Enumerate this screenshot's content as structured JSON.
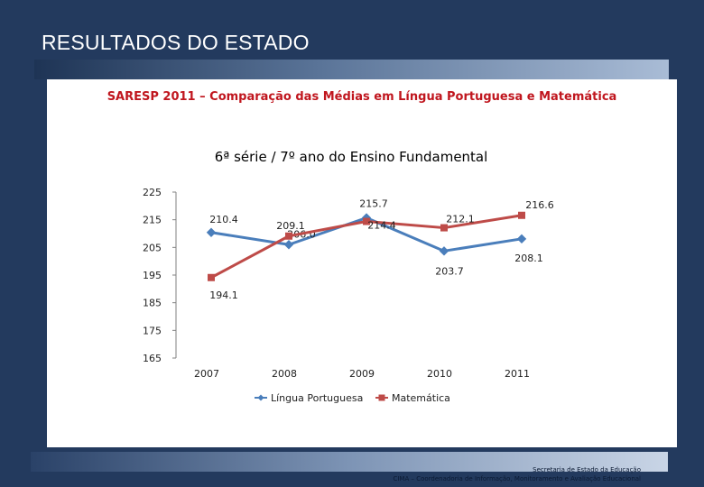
{
  "slide": {
    "title": "RESULTADOS DO ESTADO",
    "subtitle": "SARESP 2011 – Comparação das Médias em Língua Portuguesa e Matemática"
  },
  "footer": {
    "line1": "Secretaria de Estado da Educação",
    "line2": "CIMA – Coordenadoria de Informação, Monitoramento e Avaliação Educacional"
  },
  "colors": {
    "background": "#233a5e",
    "subtitle": "#c0161e",
    "lingua": "#4a7ebb",
    "matematica": "#be4b48"
  },
  "chart_data": {
    "type": "line",
    "title": "6ª série / 7º ano do Ensino Fundamental",
    "categories": [
      "2007",
      "2008",
      "2009",
      "2010",
      "2011"
    ],
    "ylim": [
      165,
      225
    ],
    "yticks": [
      225,
      215,
      205,
      195,
      185,
      175,
      165
    ],
    "series": [
      {
        "name": "Língua Portuguesa",
        "color": "#4a7ebb",
        "marker": "diamond",
        "values": [
          210.4,
          206.0,
          215.7,
          203.7,
          208.1
        ],
        "labels": [
          "210.4",
          "206.0",
          "215.7",
          "203.7",
          "208.1"
        ]
      },
      {
        "name": "Matemática",
        "color": "#be4b48",
        "marker": "square",
        "values": [
          194.1,
          209.1,
          214.4,
          212.1,
          216.6
        ],
        "labels": [
          "194.1",
          "209.1",
          "214.4",
          "212.1",
          "216.6"
        ]
      }
    ]
  }
}
